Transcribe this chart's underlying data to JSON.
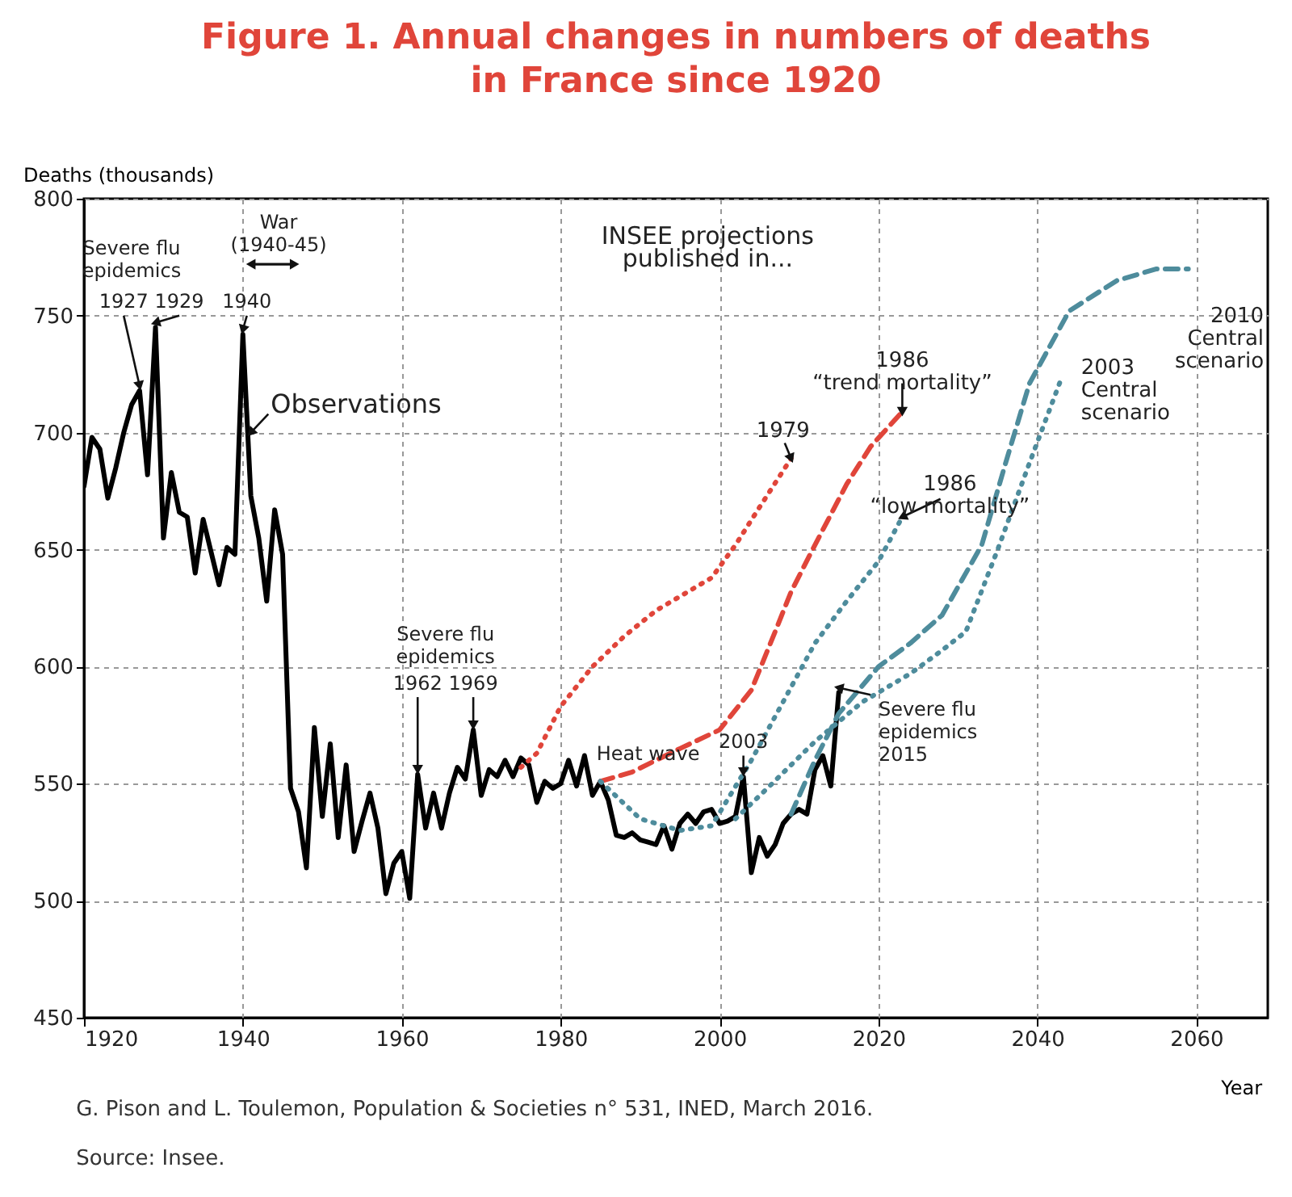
{
  "chart_data": {
    "type": "line",
    "title": "Figure 1. Annual changes in numbers of deaths\nin France since 1920",
    "xlabel": "Year",
    "ylabel": "Deaths (thousands)",
    "xlim": [
      1920,
      2069
    ],
    "xticks": [
      1920,
      1940,
      1960,
      1980,
      2000,
      2020,
      2040,
      2060
    ],
    "ylim": [
      450,
      800
    ],
    "yticks": [
      450,
      500,
      550,
      600,
      650,
      700,
      750,
      800
    ],
    "grid": true,
    "series": [
      {
        "name": "Observations",
        "color": "#000000",
        "line_style": "solid",
        "x": [
          1920,
          1921,
          1922,
          1923,
          1924,
          1925,
          1926,
          1927,
          1928,
          1929,
          1930,
          1931,
          1932,
          1933,
          1934,
          1935,
          1936,
          1937,
          1938,
          1939,
          1940,
          1941,
          1942,
          1943,
          1944,
          1945,
          1946,
          1947,
          1948,
          1949,
          1950,
          1951,
          1952,
          1953,
          1954,
          1955,
          1956,
          1957,
          1958,
          1959,
          1960,
          1961,
          1962,
          1963,
          1964,
          1965,
          1966,
          1967,
          1968,
          1969,
          1970,
          1971,
          1972,
          1973,
          1974,
          1975,
          1976,
          1977,
          1978,
          1979,
          1980,
          1981,
          1982,
          1983,
          1984,
          1985,
          1986,
          1987,
          1988,
          1989,
          1990,
          1991,
          1992,
          1993,
          1994,
          1995,
          1996,
          1997,
          1998,
          1999,
          2000,
          2001,
          2002,
          2003,
          2004,
          2005,
          2006,
          2007,
          2008,
          2009,
          2010,
          2011,
          2012,
          2013,
          2014,
          2015
        ],
        "values": [
          677,
          698,
          693,
          672,
          685,
          700,
          712,
          718,
          682,
          745,
          655,
          683,
          666,
          664,
          640,
          663,
          649,
          635,
          651,
          648,
          742,
          673,
          655,
          628,
          667,
          648,
          548,
          538,
          514,
          574,
          536,
          567,
          527,
          558,
          521,
          534,
          546,
          531,
          503,
          516,
          521,
          501,
          554,
          531,
          546,
          531,
          546,
          557,
          552,
          573,
          545,
          556,
          553,
          560,
          553,
          561,
          558,
          542,
          551,
          548,
          550,
          560,
          549,
          562,
          545,
          551,
          543,
          528,
          527,
          529,
          526,
          525,
          524,
          532,
          522,
          533,
          537,
          533,
          538,
          539,
          533,
          534,
          536,
          553,
          512,
          527,
          519,
          524,
          533,
          537,
          539,
          537,
          556,
          562,
          549,
          589
        ]
      },
      {
        "name": "1979",
        "color": "#e0453a",
        "line_style": "dotted",
        "x": [
          1975,
          1977,
          1980,
          1984,
          1988,
          1992,
          1996,
          1999,
          2002,
          2005,
          2009
        ],
        "values": [
          557,
          563,
          583,
          600,
          613,
          624,
          632,
          638,
          652,
          668,
          689
        ]
      },
      {
        "name": "1986\n“trend mortality”",
        "color": "#e0453a",
        "line_style": "dashed",
        "x": [
          1985,
          1989,
          1995,
          2000,
          2004,
          2007,
          2009,
          2012,
          2016,
          2019,
          2023
        ],
        "values": [
          551,
          555,
          565,
          573,
          590,
          615,
          632,
          652,
          678,
          694,
          709
        ]
      },
      {
        "name": "1986\n“low mortality”",
        "color": "#4e8c9c",
        "line_style": "dotted",
        "x": [
          1985,
          1990,
          1995,
          1999,
          2004,
          2008,
          2012,
          2016,
          2020,
          2023
        ],
        "values": [
          551,
          535,
          530,
          532,
          560,
          585,
          610,
          628,
          645,
          664
        ]
      },
      {
        "name": "2003\nCentral\nscenario",
        "color": "#4e8c9c",
        "line_style": "dotted",
        "x": [
          2002,
          2006,
          2012,
          2018,
          2024,
          2028,
          2031,
          2035,
          2039,
          2043
        ],
        "values": [
          535,
          548,
          568,
          585,
          597,
          607,
          615,
          650,
          687,
          723
        ]
      },
      {
        "name": "2010\nCentral\nscenario",
        "color": "#4e8c9c",
        "line_style": "dashed",
        "x": [
          2009,
          2012,
          2015,
          2020,
          2024,
          2028,
          2033,
          2036,
          2039,
          2044,
          2050,
          2055,
          2059
        ],
        "values": [
          537,
          560,
          580,
          600,
          610,
          622,
          652,
          687,
          721,
          752,
          765,
          770,
          770
        ]
      }
    ],
    "annotations": [
      "Severe flu\nepidemics",
      {
        "text": "1927",
        "x": 1927,
        "y": 718
      },
      {
        "text": "1929",
        "x": 1929,
        "y": 745
      },
      {
        "text": "1940",
        "x": 1940,
        "y": 742
      },
      "War\n(1940-45)",
      "INSEE projections\npublished in...",
      "Severe flu\nepidemics",
      {
        "text": "1962",
        "x": 1962,
        "y": 554
      },
      {
        "text": "1969",
        "x": 1969,
        "y": 573
      },
      "Heat wave",
      {
        "text": "2003",
        "x": 2003,
        "y": 553
      },
      {
        "text": "Severe flu\nepidemics\n2015",
        "x": 2015,
        "y": 589
      },
      "G. Pison and L. Toulemon, Population & Societies n° 531, INED, March 2016.",
      "Source: Insee."
    ]
  }
}
